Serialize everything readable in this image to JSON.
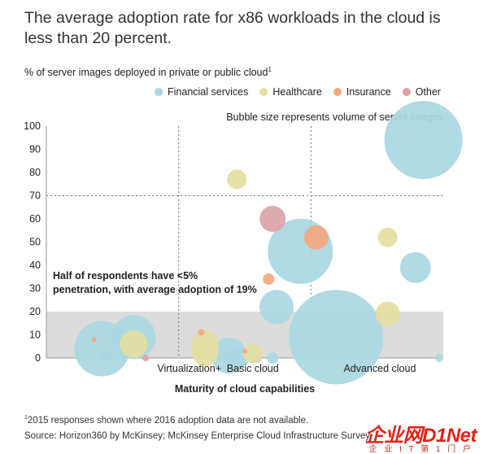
{
  "title": "The average adoption rate for x86 workloads in the cloud is less than 20 percent.",
  "subtitle": "% of server images deployed in private or public cloud",
  "subtitle_footnote_mark": "1",
  "size_note": "Bubble size represents volume of server images",
  "annotation_line1": "Half of respondents have <5%",
  "annotation_line2": "penetration, with average adoption of 19%",
  "footnote_mark": "1",
  "footnote": "2015 responses shown where 2016 adoption data are not available.",
  "source": "Source: Horizon360 by McKinsey; McKinsey Enterprise Cloud Infrastructure Survey",
  "watermark": {
    "main": "企业网D1Net",
    "sub": "企 业 I T 第 1 门 户"
  },
  "colors": {
    "Financial services": "#a9d7e2",
    "Healthcare": "#e3dea1",
    "Insurance": "#f3a77e",
    "Other": "#d9a3a8",
    "band": "#dcdcdc"
  },
  "chart_data": {
    "type": "scatter",
    "xlabel": "Maturity of cloud capabilities",
    "ylabel": "",
    "ylim": [
      0,
      100
    ],
    "yticks": [
      0,
      10,
      20,
      30,
      40,
      50,
      60,
      70,
      80,
      90,
      100
    ],
    "x_categories": [
      "Virtualization+",
      "Basic cloud",
      "Advanced cloud"
    ],
    "band": [
      0,
      20
    ],
    "reference_line_y": 70,
    "legend": [
      "Financial services",
      "Healthcare",
      "Insurance",
      "Other"
    ],
    "points": [
      {
        "series": "Financial services",
        "x": 0.14,
        "y": 4,
        "size": 34
      },
      {
        "series": "Financial services",
        "x": 0.22,
        "y": 9,
        "size": 27
      },
      {
        "series": "Financial services",
        "x": 0.15,
        "y": 1,
        "size": 7
      },
      {
        "series": "Financial services",
        "x": 0.46,
        "y": 1,
        "size": 22
      },
      {
        "series": "Financial services",
        "x": 0.53,
        "y": 0,
        "size": 6
      },
      {
        "series": "Financial services",
        "x": 0.48,
        "y": 0,
        "size": 14
      },
      {
        "series": "Financial services",
        "x": 0.57,
        "y": 0,
        "size": 7
      },
      {
        "series": "Financial services",
        "x": 0.58,
        "y": 22,
        "size": 21
      },
      {
        "series": "Financial services",
        "x": 0.64,
        "y": 46,
        "size": 40
      },
      {
        "series": "Financial services",
        "x": 0.73,
        "y": 9,
        "size": 58
      },
      {
        "series": "Financial services",
        "x": 0.95,
        "y": 94,
        "size": 48
      },
      {
        "series": "Financial services",
        "x": 0.93,
        "y": 39,
        "size": 19
      },
      {
        "series": "Financial services",
        "x": 0.99,
        "y": 0,
        "size": 5
      },
      {
        "series": "Healthcare",
        "x": 0.22,
        "y": 6,
        "size": 17
      },
      {
        "series": "Healthcare",
        "x": 0.4,
        "y": 6,
        "size": 17
      },
      {
        "series": "Healthcare",
        "x": 0.4,
        "y": 2,
        "size": 16
      },
      {
        "series": "Healthcare",
        "x": 0.52,
        "y": 2,
        "size": 12
      },
      {
        "series": "Healthcare",
        "x": 0.48,
        "y": 77,
        "size": 12
      },
      {
        "series": "Healthcare",
        "x": 0.86,
        "y": 52,
        "size": 12
      },
      {
        "series": "Healthcare",
        "x": 0.86,
        "y": 19,
        "size": 15
      },
      {
        "series": "Insurance",
        "x": 0.68,
        "y": 52,
        "size": 15
      },
      {
        "series": "Insurance",
        "x": 0.56,
        "y": 34,
        "size": 7
      },
      {
        "series": "Insurance",
        "x": 0.12,
        "y": 8,
        "size": 3
      },
      {
        "series": "Insurance",
        "x": 0.39,
        "y": 11,
        "size": 4
      },
      {
        "series": "Insurance",
        "x": 0.5,
        "y": 3,
        "size": 3
      },
      {
        "series": "Other",
        "x": 0.57,
        "y": 60,
        "size": 16
      },
      {
        "series": "Other",
        "x": 0.25,
        "y": 0,
        "size": 4
      }
    ]
  }
}
